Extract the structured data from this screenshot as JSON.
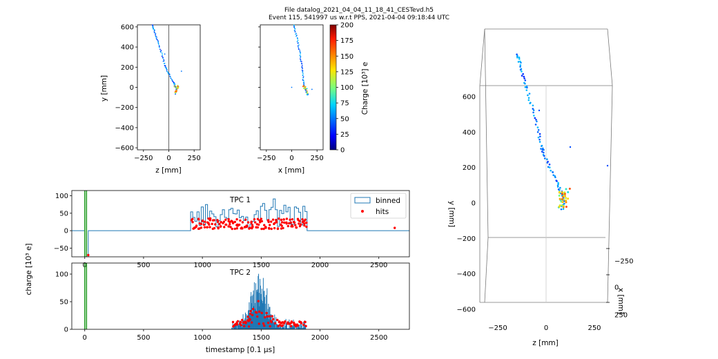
{
  "title_line1": "File datalog_2021_04_04_11_18_41_CESTevd.h5",
  "title_line2": "Event 115, 541997 us w.r.t PPS, 2021-04-04 09:18:44 UTC",
  "chart_data": [
    {
      "type": "scatter",
      "xlabel": "z [mm]",
      "ylabel": "y [mm]",
      "xlim": [
        -310,
        310
      ],
      "ylim": [
        -620,
        620
      ],
      "xticks": [
        -250,
        0,
        250
      ],
      "yticks": [
        -600,
        -400,
        -200,
        0,
        200,
        400,
        600
      ],
      "track": [
        [
          -165,
          620
        ],
        [
          -150,
          580
        ],
        [
          -130,
          520
        ],
        [
          -110,
          460
        ],
        [
          -85,
          380
        ],
        [
          -60,
          300
        ],
        [
          -40,
          220
        ],
        [
          -25,
          180
        ],
        [
          5,
          120
        ],
        [
          40,
          60
        ],
        [
          60,
          20
        ],
        [
          75,
          -20
        ],
        [
          70,
          -70
        ]
      ],
      "blob": [
        [
          60,
          10
        ],
        [
          75,
          -5
        ],
        [
          85,
          -15
        ],
        [
          70,
          -30
        ],
        [
          90,
          0
        ],
        [
          65,
          -50
        ],
        [
          80,
          -40
        ],
        [
          95,
          15
        ]
      ],
      "isolated": [
        [
          -40,
          330
        ],
        [
          125,
          160
        ]
      ]
    },
    {
      "type": "scatter",
      "xlabel": "x [mm]",
      "ylabel": "",
      "xlim": [
        -310,
        310
      ],
      "ylim": [
        -620,
        620
      ],
      "xticks": [
        -250,
        0,
        250
      ],
      "yticks": [
        -600,
        -400,
        -200,
        0,
        200,
        400,
        600
      ],
      "track": [
        [
          20,
          620
        ],
        [
          35,
          560
        ],
        [
          55,
          480
        ],
        [
          70,
          400
        ],
        [
          85,
          320
        ],
        [
          95,
          240
        ],
        [
          105,
          160
        ],
        [
          115,
          80
        ],
        [
          120,
          20
        ],
        [
          140,
          -20
        ],
        [
          150,
          -60
        ],
        [
          160,
          -75
        ]
      ],
      "blob": [
        [
          115,
          15
        ],
        [
          130,
          0
        ],
        [
          145,
          -15
        ],
        [
          150,
          -40
        ],
        [
          125,
          -10
        ],
        [
          155,
          -55
        ]
      ],
      "isolated": [
        [
          0,
          0
        ],
        [
          200,
          -20
        ]
      ]
    },
    {
      "type": "colorbar",
      "label": "Charge [10³] e",
      "range": [
        0,
        200
      ],
      "ticks": [
        0,
        25,
        50,
        75,
        100,
        125,
        150,
        175,
        200
      ]
    },
    {
      "type": "line",
      "title": "TPC 1",
      "xlim": [
        -110,
        2760
      ],
      "ylim": [
        -75,
        115
      ],
      "yticks": [
        -50,
        0,
        50,
        100
      ],
      "xticks": [
        0,
        500,
        1000,
        1500,
        2000,
        2500
      ],
      "legend": {
        "entries": [
          "binned",
          "hits"
        ],
        "placement": "top-right"
      },
      "vlines_green": [
        0,
        15
      ],
      "baseline_drop": {
        "start_x": 0,
        "min_y": -75,
        "recover_x": 30
      },
      "active_range": [
        900,
        1890
      ],
      "late_hit": [
        2635,
        8
      ],
      "bin_width": 18
    },
    {
      "type": "line",
      "title": "TPC 2",
      "xlabel": "timestamp [0.1 μs]",
      "xlim": [
        -110,
        2760
      ],
      "ylim": [
        0,
        120
      ],
      "yticks": [
        0,
        50,
        100
      ],
      "xticks": [
        0,
        500,
        1000,
        1500,
        2000,
        2500
      ],
      "vlines_green": [
        0,
        15
      ],
      "active_range": [
        1250,
        1880
      ],
      "peak_center": 1480
    },
    {
      "type": "scatter3d",
      "ylabel": "y [mm]",
      "xlabel": "z [mm]",
      "zlabel": "x [mm]",
      "yticks": [
        600,
        400,
        200,
        0,
        -200,
        -400,
        -600
      ],
      "xticks": [
        -250,
        0,
        250
      ],
      "zticks": [
        -250,
        0,
        250
      ]
    }
  ],
  "shared_ylabel": "charge [10³ e]"
}
